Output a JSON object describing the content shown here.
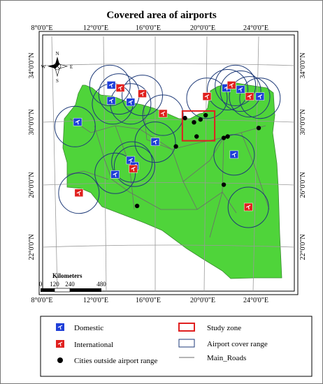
{
  "title": "Covered area of airports",
  "axes": {
    "lon_labels": [
      "8°0'0\"E",
      "12°0'0\"E",
      "16°0'0\"E",
      "20°0'0\"E",
      "24°0'0\"E"
    ],
    "lat_labels": [
      "34°0'0\"N",
      "30°0'0\"N",
      "26°0'0\"N",
      "22°0'0\"N"
    ]
  },
  "north_arrow": {
    "n": "N",
    "s": "S",
    "e": "E",
    "w": "W"
  },
  "scale_bar": {
    "title": "Kilometers",
    "ticks": [
      "0",
      "120",
      "240",
      "480"
    ]
  },
  "legend": {
    "domestic": "Domestic",
    "international": "International",
    "cities": "Cities outside airport range",
    "study_zone": "Study zone",
    "cover_range": "Airport cover range",
    "roads": "Main_Roads"
  },
  "colors": {
    "land": "#4fd43a",
    "domestic": "#1f3fd8",
    "international": "#e0201e",
    "cover_range": "#1e3a78",
    "study_zone": "#e02020",
    "city": "#000000",
    "road": "#6b6b6b"
  },
  "airports": [
    {
      "type": "domestic",
      "lon": 10.0,
      "lat": 30.0
    },
    {
      "type": "domestic",
      "lon": 12.6,
      "lat": 32.6
    },
    {
      "type": "international",
      "lon": 13.3,
      "lat": 32.4
    },
    {
      "type": "domestic",
      "lon": 12.6,
      "lat": 31.5
    },
    {
      "type": "domestic",
      "lon": 14.1,
      "lat": 31.4
    },
    {
      "type": "international",
      "lon": 15.0,
      "lat": 32.0
    },
    {
      "type": "international",
      "lon": 16.6,
      "lat": 30.6
    },
    {
      "type": "domestic",
      "lon": 16.0,
      "lat": 28.6
    },
    {
      "type": "domestic",
      "lon": 12.9,
      "lat": 26.3
    },
    {
      "type": "domestic",
      "lon": 14.1,
      "lat": 27.3
    },
    {
      "type": "domestic",
      "lon": 14.4,
      "lat": 26.9
    },
    {
      "type": "international",
      "lon": 14.3,
      "lat": 26.7
    },
    {
      "type": "international",
      "lon": 10.1,
      "lat": 25.0
    },
    {
      "type": "international",
      "lon": 20.0,
      "lat": 31.8
    },
    {
      "type": "domestic",
      "lon": 21.5,
      "lat": 32.4
    },
    {
      "type": "international",
      "lon": 21.9,
      "lat": 32.6
    },
    {
      "type": "domestic",
      "lon": 22.6,
      "lat": 32.3
    },
    {
      "type": "international",
      "lon": 23.3,
      "lat": 31.8
    },
    {
      "type": "domestic",
      "lon": 24.1,
      "lat": 31.8
    },
    {
      "type": "domestic",
      "lon": 22.1,
      "lat": 27.7
    },
    {
      "type": "international",
      "lon": 23.2,
      "lat": 24.0
    }
  ],
  "coverage_rings": [
    {
      "lon": 9.8,
      "lat": 29.7
    },
    {
      "lon": 12.5,
      "lat": 32.6
    },
    {
      "lon": 13.2,
      "lat": 32.0
    },
    {
      "lon": 12.7,
      "lat": 31.3
    },
    {
      "lon": 14.1,
      "lat": 31.3
    },
    {
      "lon": 15.0,
      "lat": 31.9
    },
    {
      "lon": 16.6,
      "lat": 30.5
    },
    {
      "lon": 16.0,
      "lat": 28.6
    },
    {
      "lon": 12.9,
      "lat": 26.4
    },
    {
      "lon": 14.2,
      "lat": 27.2
    },
    {
      "lon": 14.4,
      "lat": 26.9
    },
    {
      "lon": 10.1,
      "lat": 25.0
    },
    {
      "lon": 20.0,
      "lat": 31.7
    },
    {
      "lon": 21.6,
      "lat": 32.3
    },
    {
      "lon": 22.2,
      "lat": 32.6
    },
    {
      "lon": 22.6,
      "lat": 32.2
    },
    {
      "lon": 23.3,
      "lat": 31.8
    },
    {
      "lon": 24.1,
      "lat": 31.7
    },
    {
      "lon": 22.1,
      "lat": 27.7
    },
    {
      "lon": 23.2,
      "lat": 24.0
    }
  ],
  "cities_outside": [
    {
      "lon": 18.3,
      "lat": 30.3
    },
    {
      "lon": 19.0,
      "lat": 30.0
    },
    {
      "lon": 19.5,
      "lat": 30.2
    },
    {
      "lon": 19.9,
      "lat": 30.5
    },
    {
      "lon": 19.2,
      "lat": 29.0
    },
    {
      "lon": 17.6,
      "lat": 28.3
    },
    {
      "lon": 21.3,
      "lat": 28.9
    },
    {
      "lon": 21.6,
      "lat": 29.0
    },
    {
      "lon": 24.0,
      "lat": 29.6
    },
    {
      "lon": 21.3,
      "lat": 25.6
    },
    {
      "lon": 14.6,
      "lat": 24.1
    }
  ],
  "study_zone": {
    "lon_min": 18.1,
    "lon_max": 20.6,
    "lat_min": 28.7,
    "lat_max": 30.8
  }
}
